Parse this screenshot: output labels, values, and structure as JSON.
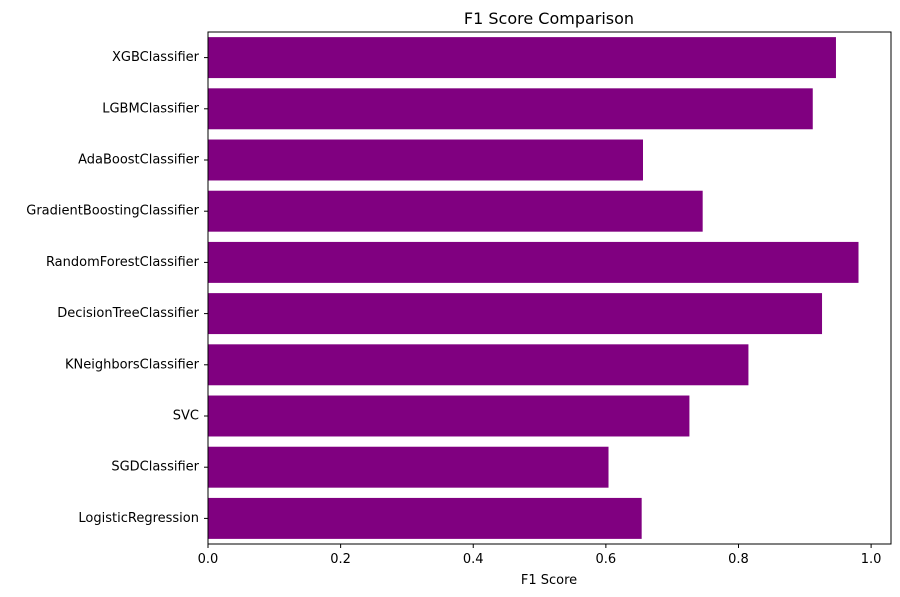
{
  "chart_data": {
    "type": "bar",
    "orientation": "horizontal",
    "title": "F1 Score Comparison",
    "xlabel": "F1 Score",
    "ylabel": "",
    "xlim": [
      0,
      1.03
    ],
    "xticks": [
      "0.0",
      "0.2",
      "0.4",
      "0.6",
      "0.8",
      "1.0"
    ],
    "grid": false,
    "color": "#800080",
    "categories": [
      "XGBClassifier",
      "LGBMClassifier",
      "AdaBoostClassifier",
      "GradientBoostingClassifier",
      "RandomForestClassifier",
      "DecisionTreeClassifier",
      "KNeighborsClassifier",
      "SVC",
      "SGDClassifier",
      "LogisticRegression"
    ],
    "values": [
      0.947,
      0.912,
      0.656,
      0.746,
      0.981,
      0.926,
      0.815,
      0.726,
      0.604,
      0.654
    ]
  }
}
